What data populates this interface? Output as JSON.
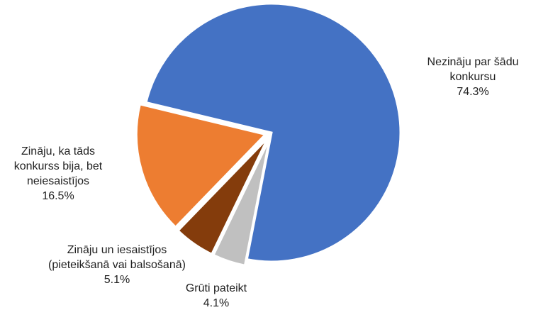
{
  "chart_data": {
    "type": "pie",
    "categories": [
      "Nezināju par šādu konkursu",
      "Zināju, ka tāds konkurss bija, bet neiesaistījos",
      "Zināju un iesaistījos (pieteikšanā vai balsošanā)",
      "Grūti pateikt"
    ],
    "values": [
      74.3,
      16.5,
      5.1,
      4.1
    ],
    "value_labels": [
      "74.3%",
      "16.5%",
      "5.1%",
      "4.1%"
    ],
    "colors": [
      "#4472c4",
      "#ed7d31",
      "#843c0c",
      "#c0c0c0"
    ]
  }
}
